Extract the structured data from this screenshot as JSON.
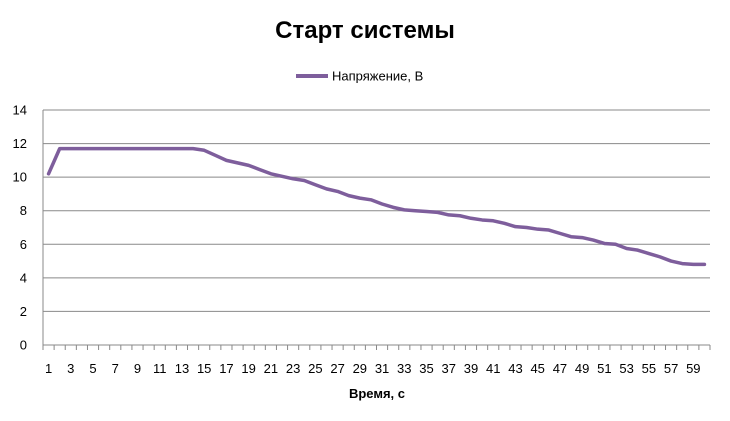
{
  "chart_data": {
    "type": "line",
    "title": "Старт системы",
    "xlabel": "Время, с",
    "ylabel": "",
    "ylim": [
      0,
      14
    ],
    "yticks": [
      0,
      2,
      4,
      6,
      8,
      10,
      12,
      14
    ],
    "grid": true,
    "legend_position": "top-center",
    "x": [
      1,
      2,
      3,
      4,
      5,
      6,
      7,
      8,
      9,
      10,
      11,
      12,
      13,
      14,
      15,
      16,
      17,
      18,
      19,
      20,
      21,
      22,
      23,
      24,
      25,
      26,
      27,
      28,
      29,
      30,
      31,
      32,
      33,
      34,
      35,
      36,
      37,
      38,
      39,
      40,
      41,
      42,
      43,
      44,
      45,
      46,
      47,
      48,
      49,
      50,
      51,
      52,
      53,
      54,
      55,
      56,
      57,
      58,
      59,
      60
    ],
    "x_tick_labels": [
      "1",
      "3",
      "5",
      "7",
      "9",
      "11",
      "13",
      "15",
      "17",
      "19",
      "21",
      "23",
      "25",
      "27",
      "29",
      "31",
      "33",
      "35",
      "37",
      "39",
      "41",
      "43",
      "45",
      "47",
      "49",
      "51",
      "53",
      "55",
      "57",
      "59"
    ],
    "series": [
      {
        "name": "Напряжение, В",
        "color": "#7e5e9c",
        "values": [
          10.2,
          11.7,
          11.7,
          11.7,
          11.7,
          11.7,
          11.7,
          11.7,
          11.7,
          11.7,
          11.7,
          11.7,
          11.7,
          11.7,
          11.6,
          11.3,
          11.0,
          10.85,
          10.7,
          10.45,
          10.2,
          10.05,
          9.9,
          9.8,
          9.55,
          9.3,
          9.15,
          8.9,
          8.75,
          8.65,
          8.4,
          8.2,
          8.05,
          8.0,
          7.95,
          7.9,
          7.75,
          7.7,
          7.55,
          7.45,
          7.4,
          7.25,
          7.05,
          7.0,
          6.9,
          6.85,
          6.65,
          6.45,
          6.4,
          6.25,
          6.05,
          6.0,
          5.75,
          5.65,
          5.45,
          5.25,
          5.0,
          4.85,
          4.8,
          4.8
        ]
      }
    ]
  }
}
